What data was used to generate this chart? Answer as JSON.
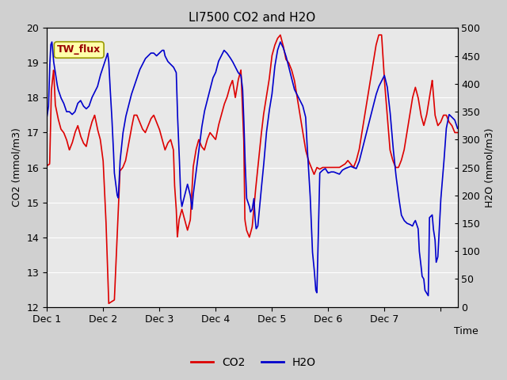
{
  "title": "LI7500 CO2 and H2O",
  "xlabel": "Time",
  "ylabel_left": "CO2 (mmol/m3)",
  "ylabel_right": "H2O (mmol/m3)",
  "ylim_left": [
    12.0,
    20.0
  ],
  "ylim_right": [
    0,
    500
  ],
  "yticks_left": [
    12.0,
    13.0,
    14.0,
    15.0,
    16.0,
    17.0,
    18.0,
    19.0,
    20.0
  ],
  "yticks_right": [
    0,
    50,
    100,
    150,
    200,
    250,
    300,
    350,
    400,
    450,
    500
  ],
  "xtick_labels": [
    "Dec 1",
    "Dec 2",
    "Dec 3",
    "Dec 4",
    "Dec 5",
    "Dec 6",
    "Dec 7"
  ],
  "co2_color": "#dd0000",
  "h2o_color": "#0000cc",
  "fig_bg_color": "#d0d0d0",
  "plot_bg_color": "#e8e8e8",
  "grid_color": "#ffffff",
  "annotation_text": "TW_flux",
  "annotation_bg": "#ffffaa",
  "annotation_border": "#999900",
  "legend_co2": "CO2",
  "legend_h2o": "H2O",
  "title_fontsize": 11,
  "axis_fontsize": 9,
  "tick_fontsize": 9,
  "linewidth": 1.2
}
